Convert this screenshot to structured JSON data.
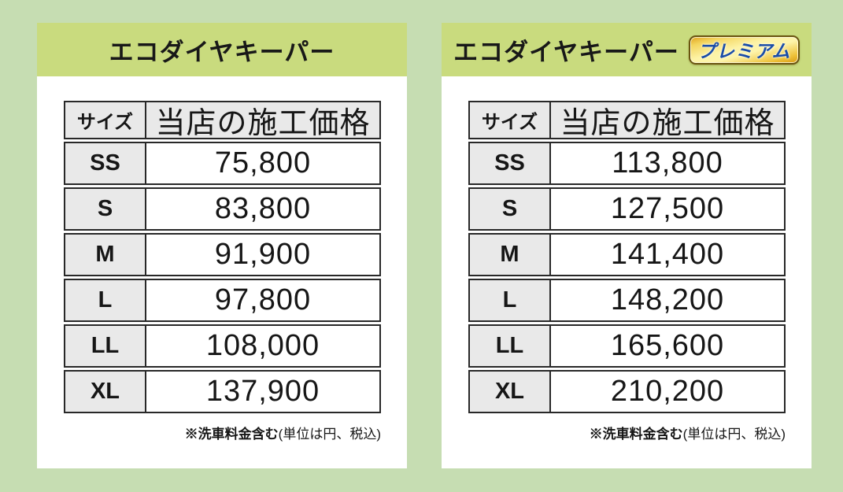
{
  "colors": {
    "page_background": "#c6ddb2",
    "band_background": "#c9db7e",
    "table_border": "#282828",
    "gray_cell": "#e9e9e9",
    "badge_gold": "#f3d45c",
    "badge_text_blue": "#1a4da8"
  },
  "panels": [
    {
      "title": "エコダイヤキーパー",
      "table": {
        "headers": {
          "size": "サイズ",
          "price": "当店の施工価格"
        },
        "rows": [
          {
            "size": "SS",
            "price": "75,800"
          },
          {
            "size": "S",
            "price": "83,800"
          },
          {
            "size": "M",
            "price": "91,900"
          },
          {
            "size": "L",
            "price": "97,800"
          },
          {
            "size": "LL",
            "price": "108,000"
          },
          {
            "size": "XL",
            "price": "137,900"
          }
        ]
      },
      "note": {
        "bold": "※洗車料金含む",
        "regular": "(単位は円、税込)"
      }
    },
    {
      "title": "エコダイヤキーパー",
      "badge": "プレミアム",
      "table": {
        "headers": {
          "size": "サイズ",
          "price": "当店の施工価格"
        },
        "rows": [
          {
            "size": "SS",
            "price": "113,800"
          },
          {
            "size": "S",
            "price": "127,500"
          },
          {
            "size": "M",
            "price": "141,400"
          },
          {
            "size": "L",
            "price": "148,200"
          },
          {
            "size": "LL",
            "price": "165,600"
          },
          {
            "size": "XL",
            "price": "210,200"
          }
        ]
      },
      "note": {
        "bold": "※洗車料金含む",
        "regular": "(単位は円、税込)"
      }
    }
  ]
}
